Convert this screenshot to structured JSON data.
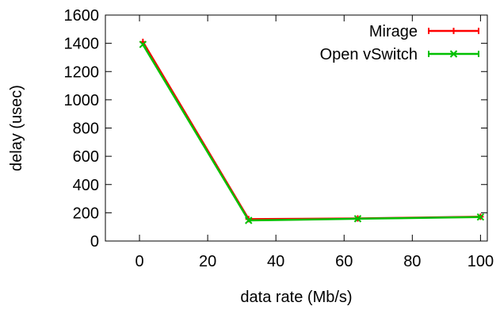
{
  "chart_data": {
    "type": "line",
    "xlabel": "data rate (Mb/s)",
    "ylabel": "delay (usec)",
    "xlim": [
      -10,
      102
    ],
    "ylim": [
      0,
      1600
    ],
    "xticks": [
      0,
      20,
      40,
      60,
      80,
      100
    ],
    "yticks": [
      0,
      200,
      400,
      600,
      800,
      1000,
      1200,
      1400,
      1600
    ],
    "grid": false,
    "legend_position": "top-right",
    "series": [
      {
        "name": "Mirage",
        "color": "#ff0000",
        "marker": "plus",
        "x": [
          1,
          32,
          64,
          100
        ],
        "y": [
          1410,
          155,
          160,
          172
        ]
      },
      {
        "name": "Open vSwitch",
        "color": "#00c000",
        "marker": "cross",
        "x": [
          1,
          32,
          64,
          100
        ],
        "y": [
          1392,
          146,
          158,
          170
        ]
      }
    ]
  }
}
